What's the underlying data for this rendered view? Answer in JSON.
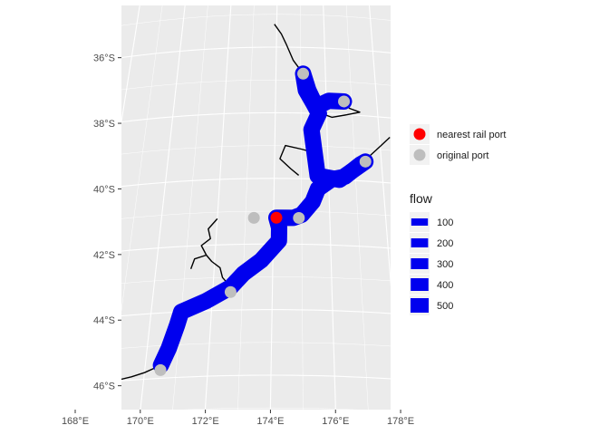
{
  "chart_data": {
    "type": "map",
    "title": "",
    "xlabel": "",
    "ylabel": "",
    "grid": true,
    "x_ticks": [
      {
        "lon": 168,
        "label": "168°E"
      },
      {
        "lon": 170,
        "label": "170°E"
      },
      {
        "lon": 172,
        "label": "172°E"
      },
      {
        "lon": 174,
        "label": "174°E"
      },
      {
        "lon": 176,
        "label": "176°E"
      },
      {
        "lon": 178,
        "label": "178°E"
      }
    ],
    "y_ticks": [
      {
        "lat": -36,
        "label": "36°S"
      },
      {
        "lat": -38,
        "label": "38°S"
      },
      {
        "lat": -40,
        "label": "40°S"
      },
      {
        "lat": -42,
        "label": "42°S"
      },
      {
        "lat": -44,
        "label": "44°S"
      },
      {
        "lat": -46,
        "label": "46°S"
      }
    ],
    "xlim": [
      167.5,
      179.0
    ],
    "ylim": [
      -47.0,
      -35.0
    ],
    "flow_route": [
      [
        170.5,
        -45.6
      ],
      [
        170.7,
        -45.1
      ],
      [
        170.9,
        -44.4
      ],
      [
        171.0,
        -44.0
      ],
      [
        171.8,
        -43.7
      ],
      [
        172.6,
        -43.3
      ],
      [
        173.0,
        -42.9
      ],
      [
        173.6,
        -42.5
      ],
      [
        174.2,
        -41.9
      ],
      [
        174.2,
        -41.5
      ],
      [
        174.1,
        -41.2
      ],
      [
        174.7,
        -41.2
      ],
      [
        175.0,
        -41.1
      ],
      [
        175.4,
        -40.7
      ],
      [
        175.6,
        -40.3
      ],
      [
        176.1,
        -40.0
      ],
      [
        176.6,
        -39.9
      ],
      [
        177.2,
        -39.5
      ],
      [
        177.4,
        -39.4
      ],
      [
        176.4,
        -40.0
      ],
      [
        175.6,
        -39.9
      ],
      [
        175.5,
        -39.2
      ],
      [
        175.4,
        -38.5
      ],
      [
        175.7,
        -38.0
      ],
      [
        175.5,
        -37.7
      ],
      [
        175.2,
        -37.3
      ],
      [
        175.1,
        -36.8
      ],
      [
        175.3,
        -37.3
      ],
      [
        175.6,
        -37.8
      ],
      [
        176.1,
        -37.6
      ],
      [
        176.7,
        -37.6
      ]
    ],
    "rail_lines": [
      [
        [
          167.5,
          -46.0
        ],
        [
          167.7,
          -46.2
        ],
        [
          167.8,
          -46.5
        ],
        [
          168.0,
          -46.3
        ],
        [
          168.5,
          -46.1
        ],
        [
          169.0,
          -46.0
        ],
        [
          169.6,
          -45.9
        ],
        [
          170.0,
          -45.8
        ],
        [
          170.5,
          -45.6
        ]
      ],
      [
        [
          172.6,
          -43.3
        ],
        [
          172.3,
          -43.0
        ],
        [
          172.2,
          -42.7
        ],
        [
          171.9,
          -42.5
        ],
        [
          171.7,
          -42.3
        ],
        [
          171.5,
          -42.0
        ],
        [
          171.8,
          -41.8
        ],
        [
          171.7,
          -41.5
        ],
        [
          172.0,
          -41.2
        ]
      ],
      [
        [
          171.7,
          -42.3
        ],
        [
          171.3,
          -42.4
        ],
        [
          171.2,
          -42.7
        ]
      ],
      [
        [
          175.1,
          -36.8
        ],
        [
          174.7,
          -36.4
        ],
        [
          174.4,
          -35.9
        ],
        [
          174.2,
          -35.6
        ],
        [
          173.9,
          -35.3
        ]
      ],
      [
        [
          175.5,
          -39.2
        ],
        [
          175.0,
          -39.1
        ],
        [
          174.4,
          -39.0
        ],
        [
          174.2,
          -39.4
        ],
        [
          174.6,
          -39.7
        ],
        [
          174.9,
          -39.9
        ]
      ],
      [
        [
          176.6,
          -39.9
        ],
        [
          177.2,
          -39.5
        ],
        [
          177.6,
          -39.2
        ],
        [
          178.0,
          -38.9
        ],
        [
          178.4,
          -38.6
        ]
      ],
      [
        [
          176.7,
          -37.6
        ],
        [
          176.9,
          -37.8
        ],
        [
          177.3,
          -37.9
        ],
        [
          176.8,
          -38.0
        ],
        [
          176.2,
          -38.1
        ],
        [
          175.8,
          -38.0
        ]
      ]
    ],
    "nearest_rail_ports": [
      [
        174.1,
        -41.2
      ]
    ],
    "original_ports": [
      [
        175.1,
        -36.8
      ],
      [
        176.7,
        -37.6
      ],
      [
        177.4,
        -39.4
      ],
      [
        174.9,
        -41.2
      ],
      [
        173.3,
        -41.2
      ],
      [
        172.6,
        -43.45
      ],
      [
        170.5,
        -45.75
      ]
    ],
    "point_legend": {
      "items": [
        {
          "label": "nearest rail port",
          "color": "#ff0000"
        },
        {
          "label": "original port",
          "color": "#bebebe"
        }
      ]
    },
    "size_legend": {
      "title": "flow",
      "items": [
        {
          "label": "100",
          "value": 100
        },
        {
          "label": "200",
          "value": 200
        },
        {
          "label": "300",
          "value": 300
        },
        {
          "label": "400",
          "value": 400
        },
        {
          "label": "500",
          "value": 500
        }
      ]
    },
    "colors": {
      "flow": "#0000ee",
      "rail": "#000000",
      "panel": "#ebebeb",
      "grid": "#ffffff",
      "nearest": "#ff0000",
      "original": "#bebebe"
    }
  }
}
